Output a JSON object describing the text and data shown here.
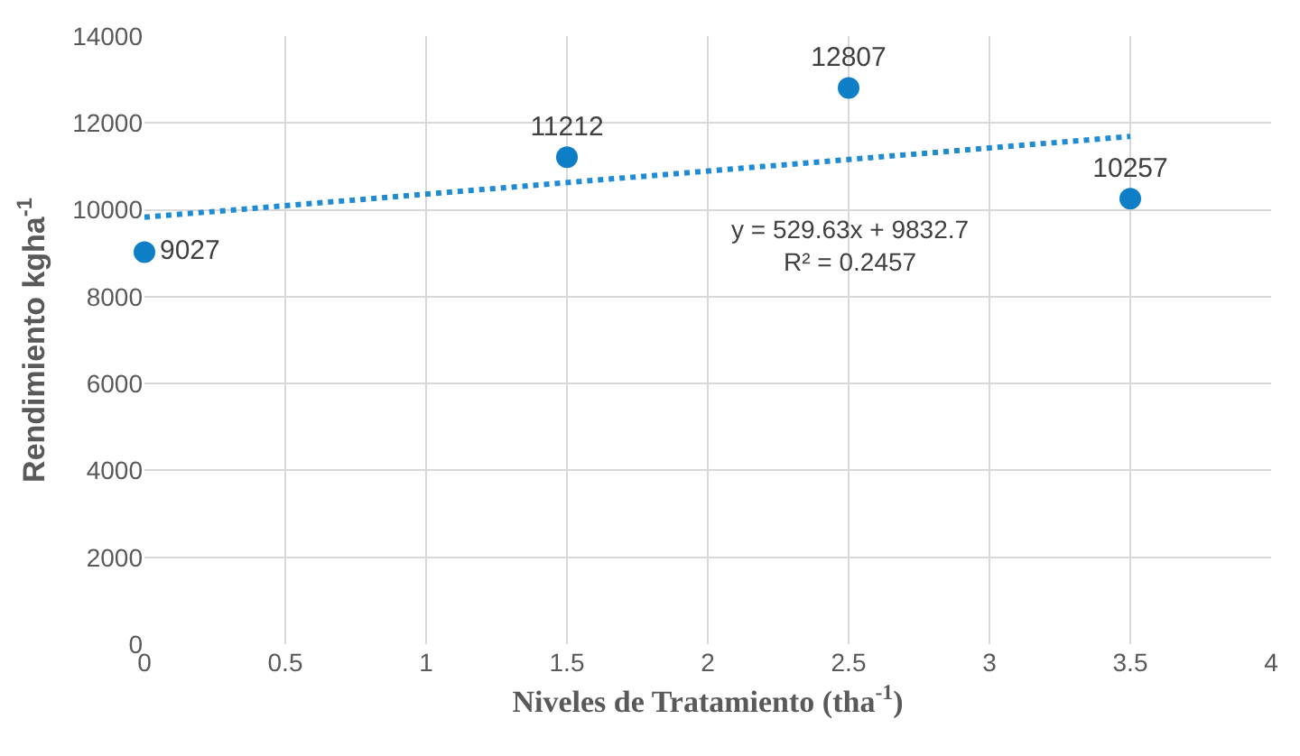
{
  "chart_data": {
    "type": "scatter",
    "xlabel": "Niveles de Tratamiento (tha$^{-1}$)",
    "ylabel": "Rendimiento kgha$^{-1}$",
    "xlim": [
      0,
      4
    ],
    "xticks": [
      0,
      0.5,
      1,
      1.5,
      2,
      2.5,
      3,
      3.5,
      4
    ],
    "ylim": [
      0,
      14000
    ],
    "yticks": [
      0,
      2000,
      4000,
      6000,
      8000,
      10000,
      12000,
      14000
    ],
    "grid": true,
    "series": [
      {
        "marker": "circle",
        "color": "#0e7fc6",
        "x": [
          0,
          1.5,
          2.5,
          3.5
        ],
        "values": [
          9027,
          11212,
          12807,
          10257
        ],
        "value_labels": [
          "9027",
          "11212",
          "12807",
          "10257"
        ]
      },
      {
        "type": "line",
        "marker": "none",
        "color": "#1f8bd2",
        "line_style": "dotted",
        "x": [
          0,
          3.5
        ],
        "values": [
          9830,
          11690
        ]
      }
    ],
    "annotations": [
      "y = 529.63x + 9832.7",
      "R² = 0.2457"
    ]
  }
}
